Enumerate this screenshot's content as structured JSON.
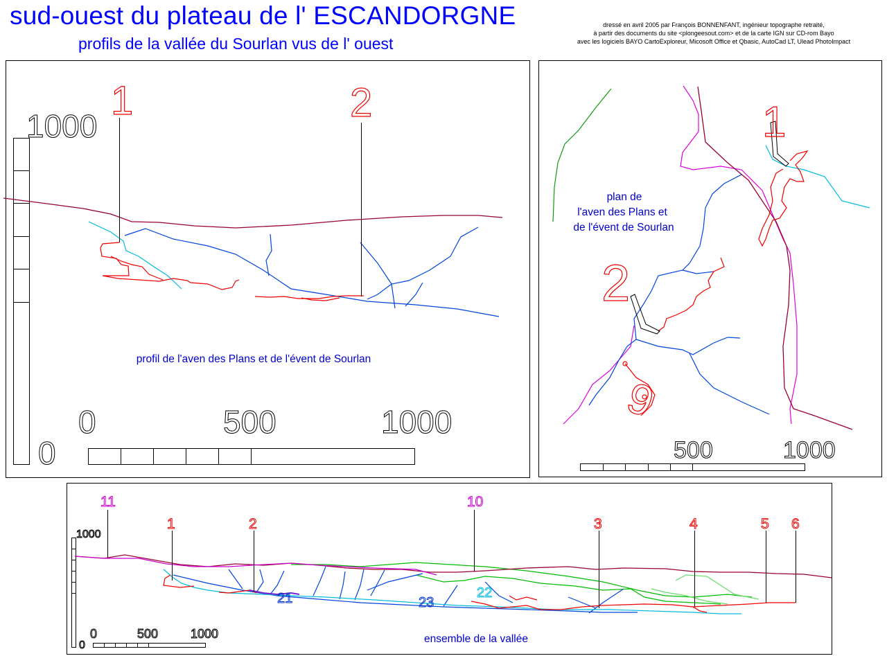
{
  "header": {
    "title": "sud-ouest du plateau de l' ESCANDORGNE",
    "subtitle": "profils de la vallée du Sourlan vus de l' ouest",
    "credits": [
      "dressé en avril 2005 par François BONNENFANT, ingénieur topographe retraité,",
      "à partir des documents du site <plongeesout.com> et de la carte IGN sur CD-rom  Bayo",
      "avec les logiciels BAYO CartoExploreur, Micosoft Office et Qbasic, AutoCad LT, Ulead PhotoImpact"
    ]
  },
  "profile_panel": {
    "caption": "profil de l'aven des Plans et de l'évent de Sourlan",
    "vertical_scale": {
      "top": "1000",
      "bottom": "0"
    },
    "horizontal_scale": [
      "0",
      "500",
      "1000"
    ],
    "markers": [
      "1",
      "2"
    ]
  },
  "plan_panel": {
    "caption": [
      "plan de",
      "l'aven des Plans et",
      "de l'évent de Sourlan"
    ],
    "markers": [
      "1",
      "2",
      "9"
    ],
    "scale": [
      "500",
      "1000"
    ]
  },
  "valley_panel": {
    "caption": "ensemble de la vallée",
    "vertical_scale": {
      "top": "1000",
      "bottom": "0"
    },
    "horizontal_scale": [
      "0",
      "500",
      "1000"
    ],
    "markers_red": [
      "1",
      "2",
      "3",
      "4",
      "5",
      "6"
    ],
    "markers_magenta": [
      "11",
      "10"
    ],
    "labels_blue": [
      "21",
      "23"
    ],
    "labels_cyan": [
      "22"
    ]
  },
  "colors": {
    "title": "#0000ff",
    "terrain": "#990033",
    "cave_red": "#ee0000",
    "stream_blue": "#0044dd",
    "cyan": "#00bbdd",
    "magenta": "#dd00dd",
    "green": "#00aa00",
    "light_green": "#55dd55"
  }
}
